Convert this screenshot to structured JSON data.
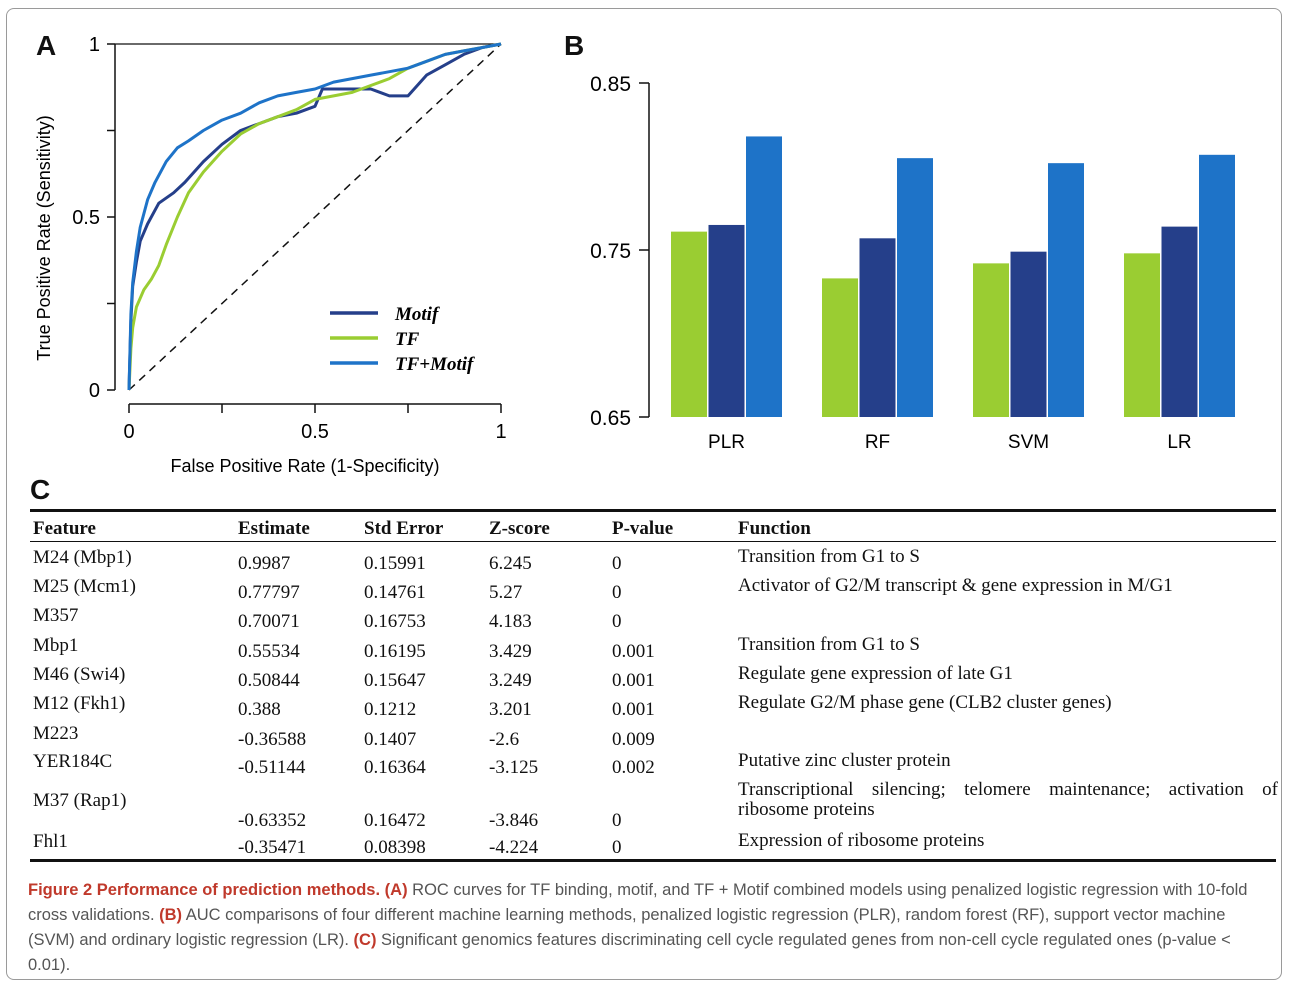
{
  "panels": {
    "a": "A",
    "b": "B",
    "c": "C"
  },
  "roc": {
    "xlabel": "False Positive Rate (1-Specificity)",
    "ylabel": "True Positive Rate (Sensitivity)",
    "xticks": [
      "0",
      "0.5",
      "1"
    ],
    "yticks": [
      "0",
      "0.5",
      "1"
    ],
    "legend": [
      "Motif",
      "TF",
      "TF+Motif"
    ]
  },
  "colors": {
    "motif": "#253f8a",
    "tf": "#9acd32",
    "tfmotif": "#1e73c8"
  },
  "chart_data": [
    {
      "type": "line",
      "xlabel": "False Positive Rate (1-Specificity)",
      "ylabel": "True Positive Rate (Sensitivity)",
      "xlim": [
        0,
        1
      ],
      "ylim": [
        0,
        1
      ],
      "series": [
        {
          "name": "Motif",
          "x": [
            0,
            0.005,
            0.01,
            0.02,
            0.03,
            0.05,
            0.08,
            0.12,
            0.15,
            0.2,
            0.25,
            0.3,
            0.35,
            0.4,
            0.45,
            0.5,
            0.52,
            0.55,
            0.6,
            0.65,
            0.7,
            0.75,
            0.8,
            0.85,
            0.9,
            0.95,
            1
          ],
          "y": [
            0,
            0.2,
            0.3,
            0.37,
            0.43,
            0.48,
            0.54,
            0.57,
            0.6,
            0.66,
            0.71,
            0.75,
            0.77,
            0.79,
            0.8,
            0.82,
            0.87,
            0.87,
            0.87,
            0.87,
            0.85,
            0.85,
            0.91,
            0.94,
            0.97,
            0.99,
            1
          ]
        },
        {
          "name": "TF",
          "x": [
            0,
            0.005,
            0.01,
            0.02,
            0.04,
            0.06,
            0.08,
            0.1,
            0.13,
            0.16,
            0.2,
            0.25,
            0.3,
            0.35,
            0.4,
            0.45,
            0.5,
            0.55,
            0.6,
            0.65,
            0.7,
            0.75,
            0.8,
            0.85,
            0.9,
            0.95,
            1
          ],
          "y": [
            0,
            0.12,
            0.18,
            0.24,
            0.29,
            0.32,
            0.36,
            0.42,
            0.5,
            0.57,
            0.63,
            0.69,
            0.74,
            0.77,
            0.79,
            0.81,
            0.84,
            0.85,
            0.86,
            0.88,
            0.9,
            0.93,
            0.95,
            0.97,
            0.98,
            0.99,
            1
          ]
        },
        {
          "name": "TF+Motif",
          "x": [
            0,
            0.005,
            0.01,
            0.02,
            0.03,
            0.05,
            0.07,
            0.1,
            0.13,
            0.16,
            0.2,
            0.25,
            0.3,
            0.35,
            0.4,
            0.45,
            0.5,
            0.55,
            0.6,
            0.65,
            0.7,
            0.75,
            0.8,
            0.85,
            0.9,
            0.95,
            1
          ],
          "y": [
            0,
            0.22,
            0.31,
            0.4,
            0.47,
            0.55,
            0.6,
            0.66,
            0.7,
            0.72,
            0.75,
            0.78,
            0.8,
            0.83,
            0.85,
            0.86,
            0.87,
            0.89,
            0.9,
            0.91,
            0.92,
            0.93,
            0.95,
            0.97,
            0.98,
            0.99,
            1
          ]
        }
      ]
    },
    {
      "type": "bar",
      "categories": [
        "PLR",
        "RF",
        "SVM",
        "LR"
      ],
      "ylim": [
        0.65,
        0.85
      ],
      "yticks": [
        "0.65",
        "0.75",
        "0.85"
      ],
      "series": [
        {
          "values": [
            0.761,
            0.733,
            0.742,
            0.748
          ]
        },
        {
          "values": [
            0.765,
            0.757,
            0.749,
            0.764
          ]
        },
        {
          "values": [
            0.818,
            0.805,
            0.802,
            0.807
          ]
        }
      ]
    }
  ],
  "table": {
    "headers": [
      "Feature",
      "Estimate",
      "Std Error",
      "Z-score",
      "P-value",
      "Function"
    ],
    "rows": [
      {
        "feature": "M24 (Mbp1)",
        "estimate": "0.9987",
        "stderr": "0.15991",
        "z": "6.245",
        "p": "0",
        "function": "Transition from G1 to S"
      },
      {
        "feature": "M25 (Mcm1)",
        "estimate": "0.77797",
        "stderr": "0.14761",
        "z": "5.27",
        "p": "0",
        "function": "Activator of G2/M transcript & gene expression in M/G1"
      },
      {
        "feature": "M357",
        "estimate": "0.70071",
        "stderr": "0.16753",
        "z": "4.183",
        "p": "0",
        "function": ""
      },
      {
        "feature": "Mbp1",
        "estimate": "0.55534",
        "stderr": "0.16195",
        "z": "3.429",
        "p": "0.001",
        "function": "Transition from G1 to S"
      },
      {
        "feature": "M46 (Swi4)",
        "estimate": "0.50844",
        "stderr": "0.15647",
        "z": "3.249",
        "p": "0.001",
        "function": "Regulate gene expression of late G1"
      },
      {
        "feature": "M12 (Fkh1)",
        "estimate": "0.388",
        "stderr": "0.1212",
        "z": "3.201",
        "p": "0.001",
        "function": "Regulate G2/M phase gene (CLB2 cluster genes)"
      },
      {
        "feature": "M223",
        "estimate": "-0.36588",
        "stderr": "0.1407",
        "z": "-2.6",
        "p": "0.009",
        "function": ""
      },
      {
        "feature": "YER184C",
        "estimate": "-0.51144",
        "stderr": "0.16364",
        "z": "-3.125",
        "p": "0.002",
        "function": "Putative zinc cluster protein"
      },
      {
        "feature": "M37 (Rap1)",
        "estimate": "-0.63352",
        "stderr": "0.16472",
        "z": "-3.846",
        "p": "0",
        "function": "Transcriptional silencing; telomere maintenance; activation of ribosome proteins"
      },
      {
        "feature": "Fhl1",
        "estimate": "-0.35471",
        "stderr": "0.08398",
        "z": "-4.224",
        "p": "0",
        "function": "Expression of ribosome proteins"
      }
    ]
  },
  "caption": {
    "title": "Figure 2 Performance of prediction methods.",
    "a_tag": "(A)",
    "a_text": " ROC curves for TF binding, motif, and TF + Motif combined models using penalized logistic regression with 10-fold cross validations. ",
    "b_tag": "(B)",
    "b_text": " AUC comparisons of four different machine learning methods, penalized logistic regression (PLR), random forest (RF), support vector machine (SVM) and ordinary logistic regression (LR). ",
    "c_tag": "(C)",
    "c_text": " Significant genomics features discriminating cell cycle regulated genes from non-cell cycle regulated ones (p-value < 0.01)."
  }
}
